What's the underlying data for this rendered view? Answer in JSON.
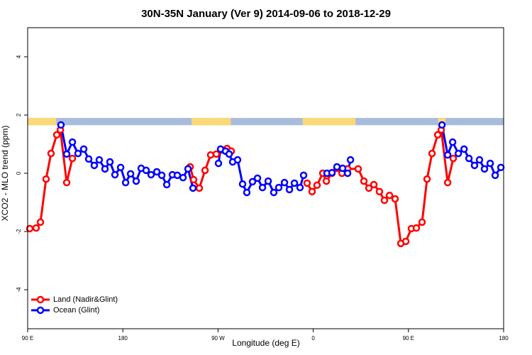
{
  "chart_data": {
    "type": "line",
    "title": "30N-35N January (Ver 9)   2014-09-06 to 2018-12-29",
    "xlabel": "Longitude (deg E)",
    "ylabel": "XCO2 - MLO trend (ppm)",
    "xlim": [
      90,
      540
    ],
    "ylim": [
      -5.34,
      5
    ],
    "xticks": [
      {
        "value": 90,
        "label": "90 E"
      },
      {
        "value": 180,
        "label": "180"
      },
      {
        "value": 270,
        "label": "90 W"
      },
      {
        "value": 360,
        "label": "0"
      },
      {
        "value": 450,
        "label": "90 E"
      },
      {
        "value": 540,
        "label": "180"
      }
    ],
    "yticks": [
      -4,
      -2,
      0,
      2,
      4
    ],
    "legend": "bottomleft",
    "land_mask": {
      "ylim": [
        1.65,
        1.9
      ],
      "land_color": "#fbd977",
      "ocean_color": "#a8bcdc",
      "land": [
        [
          90,
          117
        ],
        [
          245,
          282
        ],
        [
          350,
          400
        ],
        [
          478,
          485
        ]
      ]
    },
    "series": [
      {
        "name": "Land (Nadir&Glint)",
        "color": "#ff0000",
        "x": [
          92.0,
          98.0,
          102.1,
          107.4,
          112.1,
          117.5,
          120.9,
          126.9,
          132.3,
          null,
          243.6,
          246.9,
          252.3,
          257.7,
          263.0,
          268.4,
          273.8,
          278.5,
          282.5,
          null,
          354.2,
          358.9,
          363.6,
          369.0,
          372.4,
          377.7,
          382.4,
          387.1,
          392.5,
          402.5,
          407.9,
          412.6,
          417.3,
          422.6,
          427.3,
          432.1,
          437.4,
          442.8,
          447.5,
          452.8,
          457.5,
          462.9,
          467.6,
          472.3,
          477.7,
          481.0,
          487.1,
          492.4
        ],
        "values": [
          -1.9,
          -1.88,
          -1.68,
          -0.2,
          0.68,
          1.32,
          1.49,
          -0.32,
          0.51,
          null,
          0.22,
          -0.22,
          -0.51,
          0.1,
          0.63,
          0.66,
          0.8,
          0.85,
          0.76,
          null,
          -0.34,
          -0.63,
          -0.41,
          0.0,
          -0.27,
          0.0,
          0.17,
          0.0,
          0.15,
          0.15,
          -0.27,
          -0.51,
          -0.39,
          -0.63,
          -0.93,
          -0.76,
          -0.88,
          -2.41,
          -2.34,
          -1.9,
          -1.88,
          -1.68,
          -0.2,
          0.68,
          1.32,
          1.49,
          -0.32,
          0.51
        ]
      },
      {
        "name": "Ocean (Glint)",
        "color": "#0000ff",
        "x": [
          121.5,
          126.9,
          132.3,
          137.6,
          143.0,
          147.7,
          153.0,
          157.7,
          163.1,
          167.8,
          172.5,
          177.9,
          182.6,
          187.3,
          192.6,
          197.3,
          202.0,
          206.7,
          212.1,
          216.8,
          221.5,
          226.8,
          231.5,
          236.9,
          241.6,
          246.3,
          null,
          270.4,
          272.4,
          277.1,
          280.5,
          283.8,
          288.5,
          293.2,
          297.2,
          302.6,
          307.3,
          312.0,
          317.4,
          322.7,
          327.4,
          332.8,
          337.5,
          342.2,
          347.5,
          350.9,
          null,
          373.0,
          377.7,
          382.4,
          387.8,
          392.5,
          395.2,
          null,
          481.7,
          487.1,
          491.8,
          497.2,
          502.6,
          507.2,
          512.5,
          517.2,
          521.9,
          527.3,
          532.0,
          537.4
        ],
        "values": [
          1.66,
          0.66,
          1.07,
          0.68,
          0.83,
          0.49,
          0.27,
          0.46,
          0.15,
          0.39,
          -0.05,
          0.2,
          -0.32,
          -0.02,
          -0.27,
          0.17,
          0.1,
          -0.05,
          0.05,
          -0.07,
          -0.39,
          -0.05,
          -0.07,
          -0.15,
          0.15,
          -0.51,
          null,
          0.34,
          0.83,
          0.76,
          0.66,
          0.39,
          0.46,
          -0.37,
          -0.66,
          -0.29,
          -0.17,
          -0.49,
          -0.27,
          -0.66,
          -0.49,
          -0.32,
          -0.56,
          -0.34,
          -0.49,
          -0.07,
          null,
          0.0,
          0.02,
          0.22,
          0.17,
          0.0,
          0.46,
          null,
          1.66,
          0.63,
          1.07,
          0.68,
          0.83,
          0.51,
          0.27,
          0.46,
          0.15,
          0.34,
          -0.07,
          0.2
        ]
      }
    ]
  }
}
